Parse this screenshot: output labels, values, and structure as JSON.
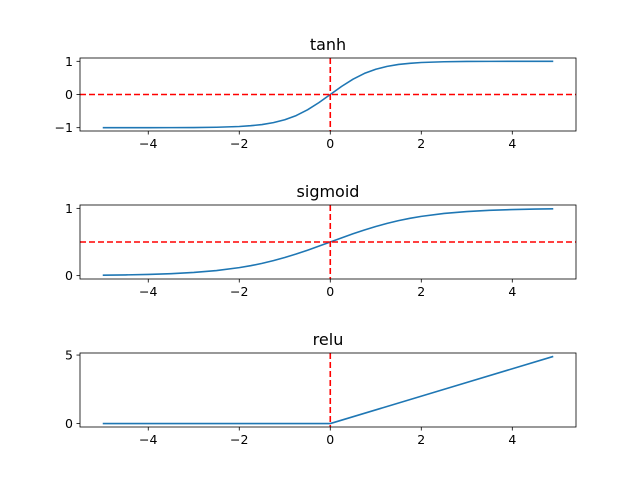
{
  "chart_data": [
    {
      "type": "line",
      "title": "tanh",
      "xlim": [
        -5.5,
        5.4
      ],
      "ylim": [
        -1.1,
        1.1
      ],
      "xticks": [
        -4,
        -2,
        0,
        2,
        4
      ],
      "xtick_labels": [
        "−4",
        "−2",
        "0",
        "2",
        "4"
      ],
      "yticks": [
        -1,
        0,
        1
      ],
      "ytick_labels": [
        "−1",
        "0",
        "1"
      ],
      "series": [
        {
          "function": "tanh",
          "x": [
            -5.0,
            -4.5,
            -4.0,
            -3.5,
            -3.0,
            -2.5,
            -2.0,
            -1.75,
            -1.5,
            -1.25,
            -1.0,
            -0.75,
            -0.5,
            -0.25,
            0.0,
            0.25,
            0.5,
            0.75,
            1.0,
            1.25,
            1.5,
            1.75,
            2.0,
            2.5,
            3.0,
            3.5,
            4.0,
            4.5,
            4.9
          ],
          "y": [
            -1.0,
            -1.0,
            -0.999,
            -0.998,
            -0.995,
            -0.987,
            -0.964,
            -0.941,
            -0.905,
            -0.848,
            -0.762,
            -0.635,
            -0.462,
            -0.245,
            0.0,
            0.245,
            0.462,
            0.635,
            0.762,
            0.848,
            0.905,
            0.941,
            0.964,
            0.987,
            0.995,
            0.998,
            0.999,
            1.0,
            1.0
          ]
        }
      ],
      "reference_lines": {
        "x": 0,
        "y": 0
      },
      "grid": false,
      "legend": "none"
    },
    {
      "type": "line",
      "title": "sigmoid",
      "xlim": [
        -5.5,
        5.4
      ],
      "ylim": [
        -0.05,
        1.05
      ],
      "xticks": [
        -4,
        -2,
        0,
        2,
        4
      ],
      "xtick_labels": [
        "−4",
        "−2",
        "0",
        "2",
        "4"
      ],
      "yticks": [
        0,
        1
      ],
      "ytick_labels": [
        "0",
        "1"
      ],
      "series": [
        {
          "function": "sigmoid",
          "x": [
            -5.0,
            -4.5,
            -4.0,
            -3.5,
            -3.0,
            -2.5,
            -2.0,
            -1.75,
            -1.5,
            -1.25,
            -1.0,
            -0.75,
            -0.5,
            -0.25,
            0.0,
            0.25,
            0.5,
            0.75,
            1.0,
            1.25,
            1.5,
            1.75,
            2.0,
            2.5,
            3.0,
            3.5,
            4.0,
            4.5,
            4.9
          ],
          "y": [
            0.007,
            0.011,
            0.018,
            0.029,
            0.047,
            0.076,
            0.119,
            0.148,
            0.182,
            0.223,
            0.269,
            0.321,
            0.378,
            0.438,
            0.5,
            0.562,
            0.622,
            0.679,
            0.731,
            0.777,
            0.818,
            0.852,
            0.881,
            0.924,
            0.953,
            0.971,
            0.982,
            0.989,
            0.993
          ]
        }
      ],
      "reference_lines": {
        "x": 0,
        "y": 0.5
      },
      "grid": false,
      "legend": "none"
    },
    {
      "type": "line",
      "title": "relu",
      "xlim": [
        -5.5,
        5.4
      ],
      "ylim": [
        -0.25,
        5.15
      ],
      "xticks": [
        -4,
        -2,
        0,
        2,
        4
      ],
      "xtick_labels": [
        "−4",
        "−2",
        "0",
        "2",
        "4"
      ],
      "yticks": [
        0,
        5
      ],
      "ytick_labels": [
        "0",
        "5"
      ],
      "series": [
        {
          "function": "relu",
          "x": [
            -5.0,
            0.0,
            4.9
          ],
          "y": [
            0.0,
            0.0,
            4.9
          ]
        }
      ],
      "reference_lines": {
        "x": 0
      },
      "grid": false,
      "legend": "none"
    }
  ],
  "colors": {
    "line": "#1f77b4",
    "reference_line": "#ff0000",
    "axes": "#000000"
  }
}
